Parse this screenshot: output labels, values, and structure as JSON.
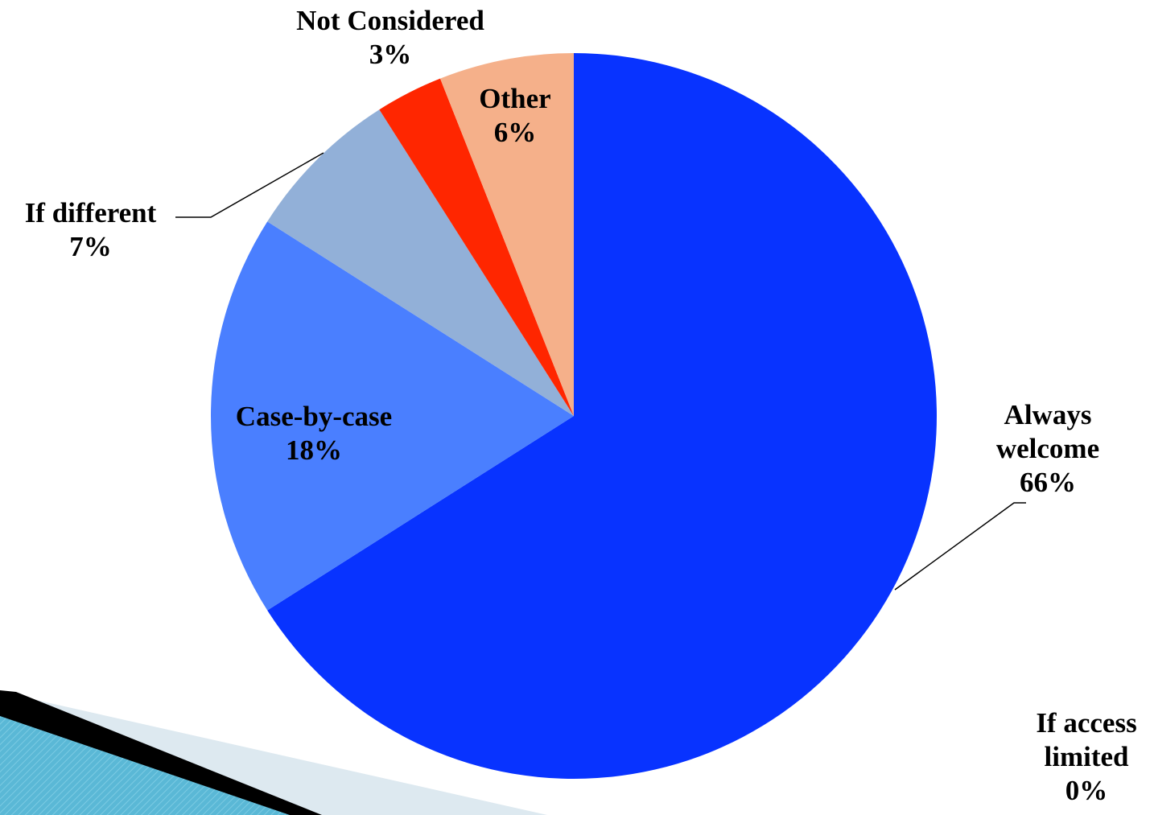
{
  "chart_data": {
    "type": "pie",
    "title": "",
    "start_angle_deg": 0,
    "direction": "clockwise",
    "slices": [
      {
        "name": "Always welcome",
        "label_lines": [
          "Always",
          "welcome"
        ],
        "value": 66,
        "value_label": "66%",
        "color": "#0833ff"
      },
      {
        "name": "If access limited",
        "label_lines": [
          "If access",
          "limited"
        ],
        "value": 0,
        "value_label": "0%",
        "color": "#1f3fbf"
      },
      {
        "name": "Case-by-case",
        "label_lines": [
          "Case-by-case"
        ],
        "value": 18,
        "value_label": "18%",
        "color": "#4a7fff"
      },
      {
        "name": "If different",
        "label_lines": [
          "If different"
        ],
        "value": 7,
        "value_label": "7%",
        "color": "#92b0d8"
      },
      {
        "name": "Not Considered",
        "label_lines": [
          "Not Considered"
        ],
        "value": 3,
        "value_label": "3%",
        "color": "#ff2600"
      },
      {
        "name": "Other",
        "label_lines": [
          "Other"
        ],
        "value": 6,
        "value_label": "6%",
        "color": "#f5b08a"
      }
    ],
    "legend": "none"
  },
  "colors": {
    "accent_dark": "#000000",
    "accent_light": "#5ab8d6",
    "accent_pale": "#dde9f0"
  }
}
